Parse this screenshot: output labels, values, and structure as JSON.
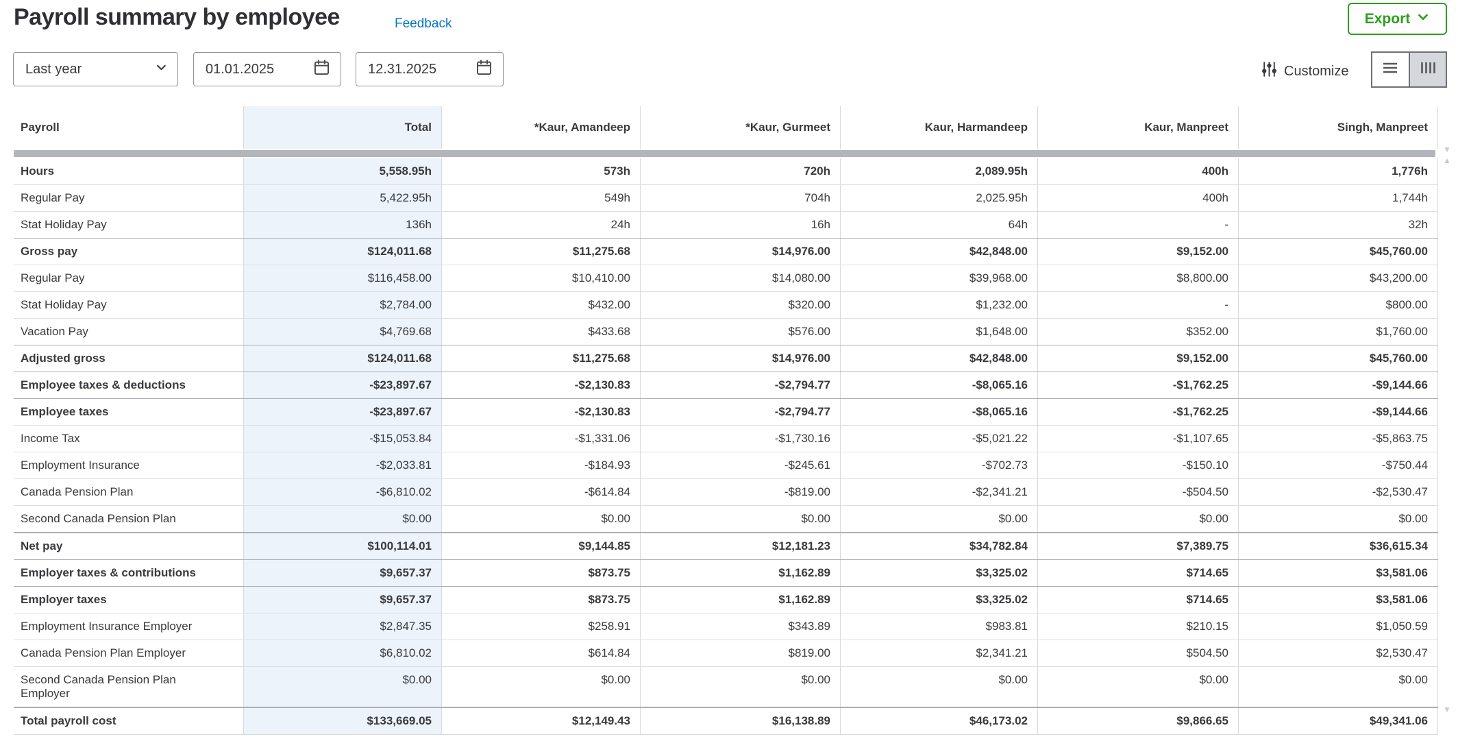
{
  "header": {
    "title": "Payroll summary by employee",
    "feedback_label": "Feedback",
    "export_label": "Export"
  },
  "filters": {
    "period_selected": "Last year",
    "start_date": "01.01.2025",
    "end_date": "12.31.2025",
    "customize_label": "Customize"
  },
  "icons": {
    "export_chevron": "chevron-down-icon",
    "period_chevron": "chevron-down-icon",
    "start_calendar": "calendar-icon",
    "end_calendar": "calendar-icon",
    "customize": "sliders-icon",
    "view_rows": "rows-list-icon",
    "view_columns": "columns-icon",
    "scroll_up": "triangle-up-icon",
    "scroll_down": "triangle-down-icon"
  },
  "colors": {
    "brand_green": "#2ca01c",
    "link_blue": "#0077c5",
    "text": "#393a3d",
    "total_column_bg": "#edf3fb",
    "grid_line": "#d7dade",
    "section_line": "#abaeb5",
    "scrollbar": "#b2b5bb",
    "toggle_selected_bg": "#d4d7dc"
  },
  "table": {
    "columns": [
      "Payroll",
      "Total",
      "*Kaur, Amandeep",
      "*Kaur, Gurmeet",
      "Kaur, Harmandeep",
      "Kaur, Manpreet",
      "Singh, Manpreet"
    ],
    "rows": [
      {
        "label": "Hours",
        "style": "bold",
        "rule": "none",
        "values": [
          "5,558.95h",
          "573h",
          "720h",
          "2,089.95h",
          "400h",
          "1,776h"
        ]
      },
      {
        "label": "Regular Pay",
        "style": "normal",
        "rule": "light",
        "values": [
          "5,422.95h",
          "549h",
          "704h",
          "2,025.95h",
          "400h",
          "1,744h"
        ]
      },
      {
        "label": "Stat Holiday Pay",
        "style": "normal",
        "rule": "light",
        "values": [
          "136h",
          "24h",
          "16h",
          "64h",
          "-",
          "32h"
        ]
      },
      {
        "label": "Gross pay",
        "style": "bold",
        "rule": "dark",
        "values": [
          "$124,011.68",
          "$11,275.68",
          "$14,976.00",
          "$42,848.00",
          "$9,152.00",
          "$45,760.00"
        ]
      },
      {
        "label": "Regular Pay",
        "style": "normal",
        "rule": "light",
        "values": [
          "$116,458.00",
          "$10,410.00",
          "$14,080.00",
          "$39,968.00",
          "$8,800.00",
          "$43,200.00"
        ]
      },
      {
        "label": "Stat Holiday Pay",
        "style": "normal",
        "rule": "light",
        "values": [
          "$2,784.00",
          "$432.00",
          "$320.00",
          "$1,232.00",
          "-",
          "$800.00"
        ]
      },
      {
        "label": "Vacation Pay",
        "style": "normal",
        "rule": "light",
        "values": [
          "$4,769.68",
          "$433.68",
          "$576.00",
          "$1,648.00",
          "$352.00",
          "$1,760.00"
        ]
      },
      {
        "label": "Adjusted gross",
        "style": "bold",
        "rule": "dark",
        "values": [
          "$124,011.68",
          "$11,275.68",
          "$14,976.00",
          "$42,848.00",
          "$9,152.00",
          "$45,760.00"
        ]
      },
      {
        "label": "Employee taxes & deductions",
        "style": "bold",
        "rule": "dark",
        "values": [
          "-$23,897.67",
          "-$2,130.83",
          "-$2,794.77",
          "-$8,065.16",
          "-$1,762.25",
          "-$9,144.66"
        ]
      },
      {
        "label": "Employee taxes",
        "style": "bold",
        "rule": "dark",
        "values": [
          "-$23,897.67",
          "-$2,130.83",
          "-$2,794.77",
          "-$8,065.16",
          "-$1,762.25",
          "-$9,144.66"
        ]
      },
      {
        "label": "Income Tax",
        "style": "normal",
        "rule": "light",
        "values": [
          "-$15,053.84",
          "-$1,331.06",
          "-$1,730.16",
          "-$5,021.22",
          "-$1,107.65",
          "-$5,863.75"
        ]
      },
      {
        "label": "Employment Insurance",
        "style": "normal",
        "rule": "light",
        "values": [
          "-$2,033.81",
          "-$184.93",
          "-$245.61",
          "-$702.73",
          "-$150.10",
          "-$750.44"
        ]
      },
      {
        "label": "Canada Pension Plan",
        "style": "normal",
        "rule": "light",
        "values": [
          "-$6,810.02",
          "-$614.84",
          "-$819.00",
          "-$2,341.21",
          "-$504.50",
          "-$2,530.47"
        ]
      },
      {
        "label": "Second Canada Pension Plan",
        "style": "normal",
        "rule": "light",
        "values": [
          "$0.00",
          "$0.00",
          "$0.00",
          "$0.00",
          "$0.00",
          "$0.00"
        ]
      },
      {
        "label": "Net pay",
        "style": "bold",
        "rule": "thick",
        "values": [
          "$100,114.01",
          "$9,144.85",
          "$12,181.23",
          "$34,782.84",
          "$7,389.75",
          "$36,615.34"
        ]
      },
      {
        "label": "Employer taxes & contributions",
        "style": "bold",
        "rule": "dark",
        "values": [
          "$9,657.37",
          "$873.75",
          "$1,162.89",
          "$3,325.02",
          "$714.65",
          "$3,581.06"
        ]
      },
      {
        "label": "Employer taxes",
        "style": "bold",
        "rule": "dark",
        "values": [
          "$9,657.37",
          "$873.75",
          "$1,162.89",
          "$3,325.02",
          "$714.65",
          "$3,581.06"
        ]
      },
      {
        "label": "Employment Insurance Employer",
        "style": "normal",
        "rule": "light",
        "values": [
          "$2,847.35",
          "$258.91",
          "$343.89",
          "$983.81",
          "$210.15",
          "$1,050.59"
        ]
      },
      {
        "label": "Canada Pension Plan Employer",
        "style": "normal",
        "rule": "light",
        "values": [
          "$6,810.02",
          "$614.84",
          "$819.00",
          "$2,341.21",
          "$504.50",
          "$2,530.47"
        ]
      },
      {
        "label": "Second Canada Pension Plan Employer",
        "style": "normal",
        "rule": "light",
        "wrap": true,
        "values": [
          "$0.00",
          "$0.00",
          "$0.00",
          "$0.00",
          "$0.00",
          "$0.00"
        ]
      },
      {
        "label": "Total payroll cost",
        "style": "bold",
        "rule": "thick",
        "values": [
          "$133,669.05",
          "$12,149.43",
          "$16,138.89",
          "$46,173.02",
          "$9,866.65",
          "$49,341.06"
        ]
      }
    ]
  }
}
